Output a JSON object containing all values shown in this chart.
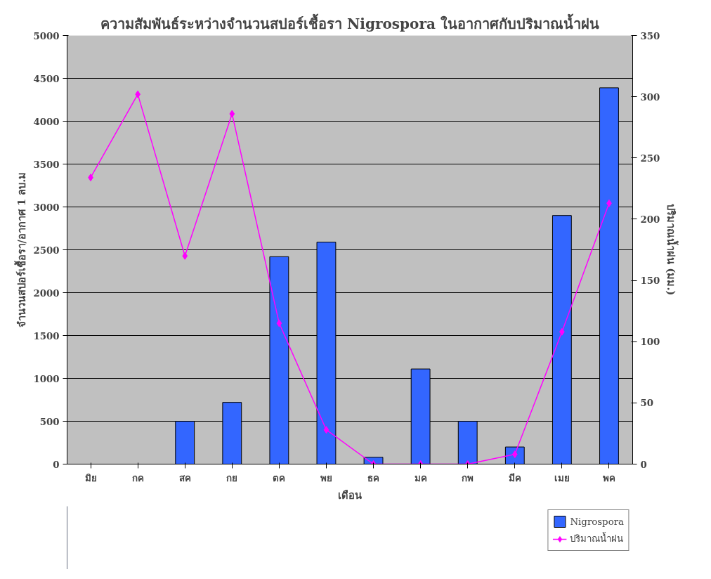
{
  "chart_data": {
    "type": "bar",
    "title": "ความสัมพันธ์ระหว่างจำนวนสปอร์เชื้อรา Nigrospora ในอากาศกับปริมาณน้ำฝน",
    "xlabel": "เดือน",
    "ylabel": "จำนวนสปอร์เชื้อรา/อากาศ 1 ลบ.ม",
    "y2label": "ปริมาณน้ำฝน (มม.)",
    "categories": [
      "มิย",
      "กค",
      "สค",
      "กย",
      "ตค",
      "พย",
      "ธค",
      "มค",
      "กพ",
      "มีค",
      "เมย",
      "พค"
    ],
    "series": [
      {
        "name": "Nigrospora",
        "color": "#3366ff",
        "values": [
          0,
          0,
          500,
          720,
          2420,
          2590,
          80,
          1110,
          500,
          200,
          2900,
          4390
        ]
      },
      {
        "name": "ปริมาณน้ำฝน",
        "type": "line",
        "axis": "y2",
        "color": "#ff00ff",
        "marker": "diamond",
        "values": [
          234,
          302,
          170,
          286,
          115,
          28,
          0,
          0,
          0,
          8,
          108,
          213
        ]
      }
    ],
    "ylim": [
      0,
      5000
    ],
    "yticks": [
      0,
      500,
      1000,
      1500,
      2000,
      2500,
      3000,
      3500,
      4000,
      4500,
      5000
    ],
    "y2lim": [
      0,
      350
    ],
    "y2ticks": [
      0,
      50,
      100,
      150,
      200,
      250,
      300,
      350
    ],
    "grid": "y",
    "legend": "bottom right"
  }
}
